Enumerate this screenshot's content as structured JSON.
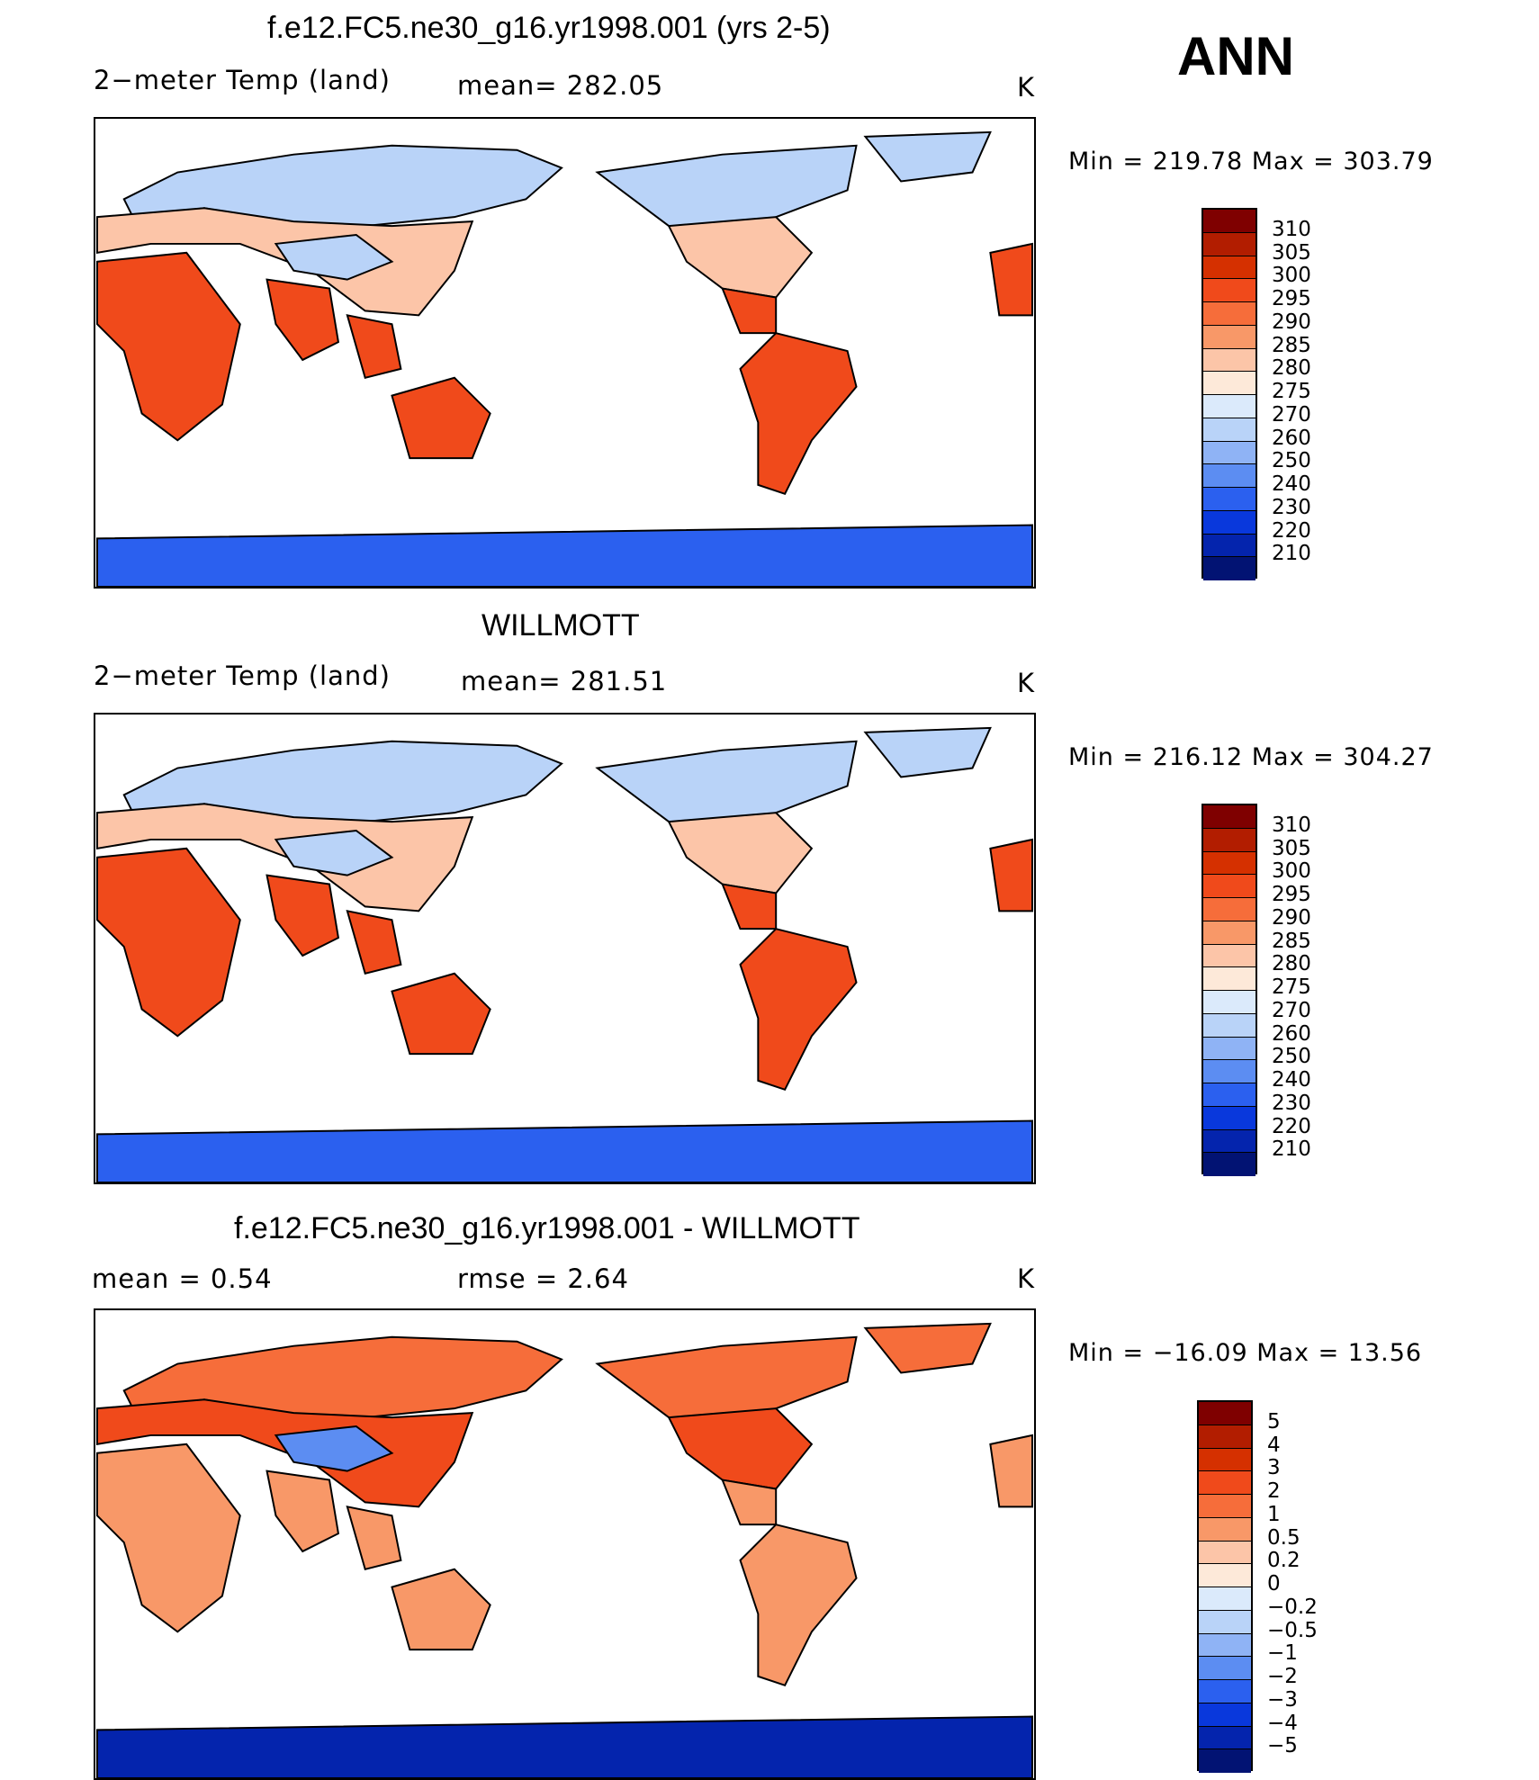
{
  "season": "ANN",
  "panels": [
    {
      "title": "f.e12.FC5.ne30_g16.yr1998.001 (yrs 2-5)",
      "left": "2−meter Temp (land)",
      "mid": "mean=  282.05",
      "units": "K",
      "minmax": "Min  =  219.78  Max  =  303.79",
      "levels": [
        "310",
        "305",
        "300",
        "295",
        "290",
        "285",
        "280",
        "275",
        "270",
        "260",
        "250",
        "240",
        "230",
        "220",
        "210"
      ],
      "colors": [
        "#7f0000",
        "#b21d00",
        "#d53000",
        "#f04a1b",
        "#f66d3a",
        "#f89868",
        "#fcc5a8",
        "#fde9d9",
        "#dbeafb",
        "#b9d3f8",
        "#8fb3f5",
        "#5c8df2",
        "#2b60ef",
        "#0938dc",
        "#0424ad",
        "#021373"
      ]
    },
    {
      "title": "WILLMOTT",
      "left": "2−meter Temp (land)",
      "mid": "mean=  281.51",
      "units": "K",
      "minmax": "Min  =  216.12  Max  =  304.27",
      "levels": [
        "310",
        "305",
        "300",
        "295",
        "290",
        "285",
        "280",
        "275",
        "270",
        "260",
        "250",
        "240",
        "230",
        "220",
        "210"
      ],
      "colors": [
        "#7f0000",
        "#b21d00",
        "#d53000",
        "#f04a1b",
        "#f66d3a",
        "#f89868",
        "#fcc5a8",
        "#fde9d9",
        "#dbeafb",
        "#b9d3f8",
        "#8fb3f5",
        "#5c8df2",
        "#2b60ef",
        "#0938dc",
        "#0424ad",
        "#021373"
      ]
    },
    {
      "title": "f.e12.FC5.ne30_g16.yr1998.001 - WILLMOTT",
      "left": "mean  =     0.54",
      "mid": "rmse  =     2.64",
      "units": "K",
      "minmax": "Min  =  −16.09  Max  =    13.56",
      "levels": [
        "5",
        "4",
        "3",
        "2",
        "1",
        "0.5",
        "0.2",
        "0",
        "−0.2",
        "−0.5",
        "−1",
        "−2",
        "−3",
        "−4",
        "−5"
      ],
      "colors": [
        "#7f0000",
        "#b21d00",
        "#d53000",
        "#f04a1b",
        "#f66d3a",
        "#f89868",
        "#fcc5a8",
        "#fde9d9",
        "#dbeafb",
        "#b9d3f8",
        "#8fb3f5",
        "#5c8df2",
        "#2b60ef",
        "#0938dc",
        "#0424ad",
        "#021373"
      ]
    }
  ]
}
